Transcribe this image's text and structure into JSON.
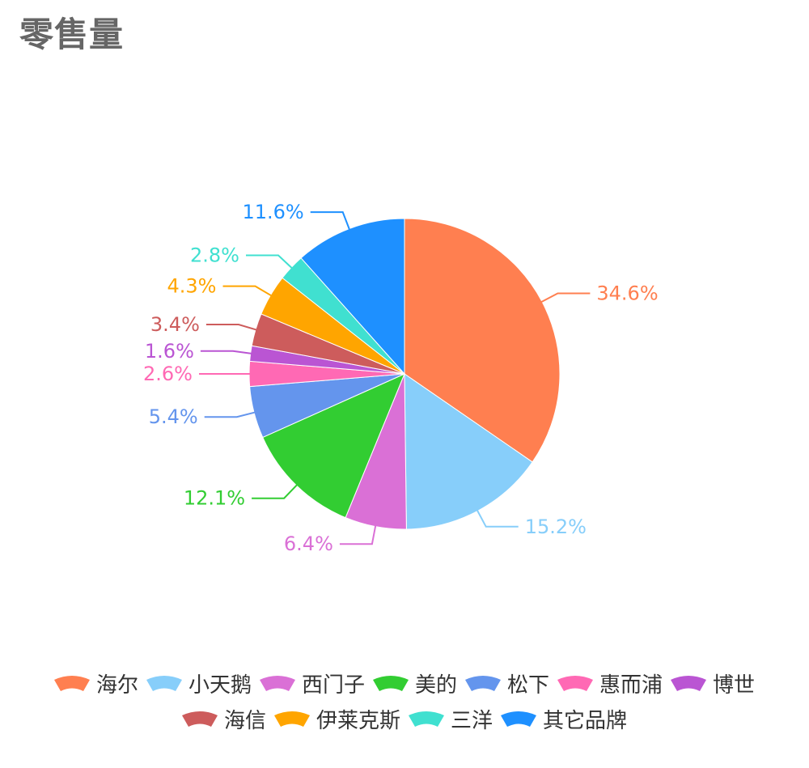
{
  "title": "零售量",
  "chart_data": {
    "type": "pie",
    "title": "零售量",
    "legend_placement": "bottom",
    "slices": [
      {
        "name": "海尔",
        "value": 34.6,
        "label": "34.6%",
        "color": "#ff7f50"
      },
      {
        "name": "小天鹅",
        "value": 15.2,
        "label": "15.2%",
        "color": "#87cefa"
      },
      {
        "name": "西门子",
        "value": 6.4,
        "label": "6.4%",
        "color": "#da70d6"
      },
      {
        "name": "美的",
        "value": 12.1,
        "label": "12.1%",
        "color": "#32cd32"
      },
      {
        "name": "松下",
        "value": 5.4,
        "label": "5.4%",
        "color": "#6495ed"
      },
      {
        "name": "惠而浦",
        "value": 2.6,
        "label": "2.6%",
        "color": "#ff69b4"
      },
      {
        "name": "博世",
        "value": 1.6,
        "label": "1.6%",
        "color": "#ba55d3"
      },
      {
        "name": "海信",
        "value": 3.4,
        "label": "3.4%",
        "color": "#cd5c5c"
      },
      {
        "name": "伊莱克斯",
        "value": 4.3,
        "label": "4.3%",
        "color": "#ffa500"
      },
      {
        "name": "三洋",
        "value": 2.8,
        "label": "2.8%",
        "color": "#40e0d0"
      },
      {
        "name": "其它品牌",
        "value": 11.6,
        "label": "11.6%",
        "color": "#1e90ff"
      }
    ]
  }
}
